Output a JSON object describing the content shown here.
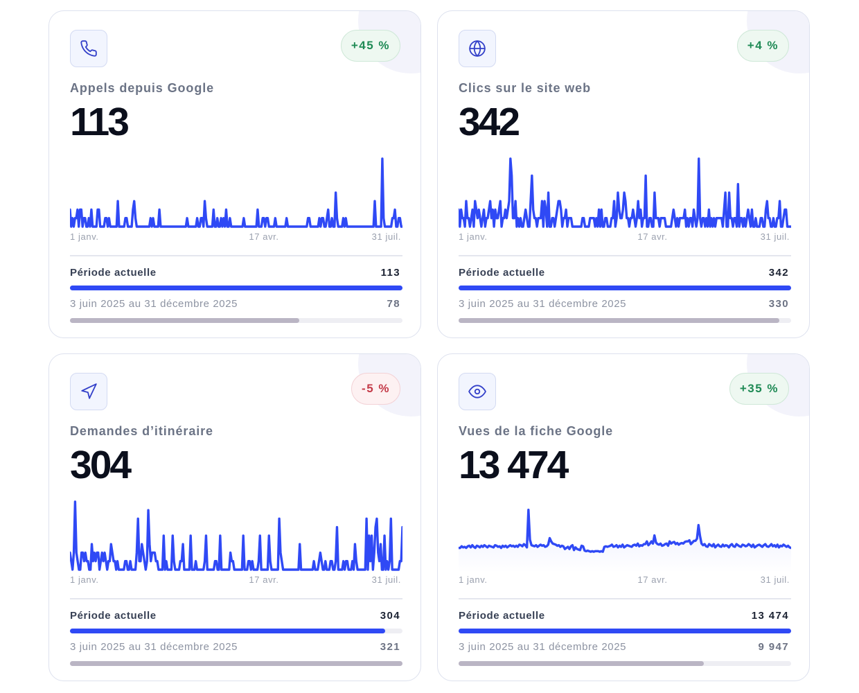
{
  "colors": {
    "accent": "#2f49f5",
    "positive": "#1f8a55",
    "negative": "#c43a48",
    "previous_bar": "#bab5c4"
  },
  "cards": [
    {
      "icon": "phone-icon",
      "title": "Appels depuis Google",
      "value": "113",
      "badge": "+45 %",
      "trend": "up",
      "current_label": "Période actuelle",
      "current_value": "113",
      "previous_label": "3 juin 2025 au 31 décembre 2025",
      "previous_value": "78",
      "bar_fraction": {
        "current": 1.0,
        "previous": 0.69
      }
    },
    {
      "icon": "globe-icon",
      "title": "Clics sur le site web",
      "value": "342",
      "badge": "+4 %",
      "trend": "up",
      "current_label": "Période actuelle",
      "current_value": "342",
      "previous_label": "3 juin 2025 au 31 décembre 2025",
      "previous_value": "330",
      "bar_fraction": {
        "current": 1.0,
        "previous": 0.965
      }
    },
    {
      "icon": "navigation-icon",
      "title": "Demandes d’itinéraire",
      "value": "304",
      "badge": "-5 %",
      "trend": "down",
      "current_label": "Période actuelle",
      "current_value": "304",
      "previous_label": "3 juin 2025 au 31 décembre 2025",
      "previous_value": "321",
      "bar_fraction": {
        "current": 0.947,
        "previous": 1.0
      }
    },
    {
      "icon": "eye-icon",
      "title": "Vues de la fiche Google",
      "value": "13 474",
      "badge": "+35 %",
      "trend": "up",
      "current_label": "Période actuelle",
      "current_value": "13 474",
      "previous_label": "3 juin 2025 au 31 décembre 2025",
      "previous_value": "9 947",
      "bar_fraction": {
        "current": 1.0,
        "previous": 0.738
      }
    }
  ],
  "chart_data": [
    {
      "type": "line",
      "x_ticks": [
        "1 janv.",
        "17 avr.",
        "31 juil."
      ],
      "ylim": [
        0,
        8
      ],
      "values": [
        2,
        0,
        1,
        0,
        1,
        1,
        2,
        0,
        2,
        2,
        0,
        1,
        1,
        0,
        0,
        1,
        0,
        2,
        0,
        0,
        0,
        0,
        2,
        2,
        0,
        0,
        0,
        0,
        1,
        1,
        0,
        1,
        0,
        0,
        0,
        0,
        0,
        0,
        3,
        0,
        0,
        0,
        0,
        0,
        1,
        1,
        0,
        0,
        0,
        0,
        2,
        3,
        1,
        0,
        0,
        0,
        0,
        0,
        0,
        0,
        0,
        0,
        0,
        0,
        1,
        0,
        1,
        0,
        0,
        0,
        0,
        2,
        0,
        0,
        0,
        0,
        0,
        0,
        0,
        0,
        0,
        0,
        0,
        0,
        0,
        0,
        0,
        0,
        0,
        0,
        0,
        0,
        0,
        1,
        0,
        0,
        0,
        0,
        0,
        0,
        0,
        1,
        0,
        0,
        1,
        1,
        0,
        3,
        1,
        0,
        0,
        0,
        0,
        0,
        2,
        0,
        0,
        1,
        0,
        0,
        1,
        0,
        1,
        0,
        2,
        0,
        0,
        1,
        0,
        0,
        0,
        0,
        0,
        0,
        0,
        0,
        0,
        0,
        1,
        0,
        0,
        0,
        0,
        0,
        0,
        0,
        0,
        0,
        0,
        2,
        0,
        0,
        0,
        1,
        1,
        0,
        1,
        1,
        0,
        0,
        0,
        0,
        0,
        1,
        0,
        0,
        0,
        0,
        0,
        0,
        0,
        0,
        1,
        0,
        0,
        0,
        0,
        0,
        0,
        0,
        0,
        0,
        0,
        0,
        0,
        0,
        0,
        0,
        0,
        1,
        1,
        0,
        0,
        0,
        0,
        0,
        0,
        0,
        1,
        0,
        1,
        1,
        0,
        0,
        1,
        2,
        0,
        0,
        1,
        0,
        0,
        4,
        1,
        0,
        0,
        0,
        0,
        1,
        0,
        1,
        0,
        0,
        0,
        0,
        0,
        0,
        0,
        0,
        0,
        0,
        0,
        0,
        0,
        0,
        0,
        0,
        0,
        0,
        0,
        0,
        0,
        0,
        3,
        0,
        0,
        0,
        0,
        0,
        8,
        1,
        0,
        0,
        0,
        0,
        0,
        0,
        1,
        1,
        2,
        0,
        0,
        1,
        1,
        0,
        0
      ]
    },
    {
      "type": "line",
      "x_ticks": [
        "1 janv.",
        "17 avr.",
        "31 juil."
      ],
      "ylim": [
        0,
        8
      ],
      "values": [
        2,
        0,
        2,
        1,
        1,
        0,
        3,
        1,
        1,
        0,
        1,
        2,
        0,
        3,
        2,
        1,
        2,
        1,
        0,
        1,
        2,
        0,
        1,
        1,
        2,
        3,
        1,
        2,
        0,
        2,
        1,
        1,
        2,
        3,
        0,
        1,
        1,
        2,
        1,
        2,
        3,
        8,
        6,
        1,
        1,
        3,
        0,
        1,
        0,
        1,
        0,
        0,
        1,
        2,
        1,
        0,
        0,
        3,
        6,
        2,
        1,
        1,
        0,
        1,
        1,
        1,
        3,
        0,
        3,
        2,
        0,
        4,
        0,
        0,
        1,
        1,
        0,
        1,
        2,
        3,
        3,
        2,
        0,
        1,
        1,
        2,
        0,
        1,
        1,
        1,
        0,
        0,
        0,
        0,
        0,
        0,
        0,
        0,
        1,
        1,
        0,
        0,
        0,
        0,
        1,
        1,
        1,
        1,
        0,
        1,
        0,
        2,
        0,
        2,
        0,
        0,
        1,
        1,
        0,
        0,
        0,
        1,
        1,
        3,
        0,
        1,
        4,
        2,
        1,
        1,
        2,
        4,
        3,
        1,
        1,
        0,
        1,
        1,
        2,
        1,
        0,
        1,
        3,
        1,
        2,
        0,
        1,
        1,
        6,
        0,
        0,
        1,
        1,
        0,
        0,
        4,
        1,
        1,
        1,
        0,
        1,
        1,
        1,
        1,
        0,
        0,
        0,
        0,
        0,
        1,
        2,
        1,
        0,
        1,
        0,
        1,
        1,
        1,
        1,
        2,
        0,
        1,
        0,
        1,
        1,
        0,
        2,
        1,
        0,
        1,
        8,
        1,
        0,
        1,
        1,
        0,
        1,
        0,
        2,
        0,
        1,
        0,
        1,
        0,
        1,
        1,
        1,
        1,
        1,
        0,
        2,
        4,
        0,
        0,
        4,
        1,
        1,
        0,
        1,
        1,
        0,
        5,
        0,
        1,
        1,
        0,
        1,
        0,
        1,
        2,
        1,
        0,
        2,
        0,
        0,
        1,
        0,
        0,
        0,
        1,
        1,
        0,
        0,
        2,
        3,
        1,
        1,
        0,
        0,
        1,
        0,
        0,
        1,
        1,
        3,
        0,
        0,
        1,
        2,
        2,
        0,
        0,
        0,
        0
      ]
    },
    {
      "type": "line",
      "x_ticks": [
        "1 janv.",
        "17 avr.",
        "31 juil."
      ],
      "ylim": [
        0,
        8
      ],
      "values": [
        2,
        1,
        0,
        2,
        8,
        2,
        1,
        0,
        0,
        2,
        2,
        1,
        2,
        1,
        1,
        0,
        0,
        3,
        1,
        2,
        1,
        2,
        2,
        0,
        1,
        2,
        1,
        2,
        1,
        0,
        1,
        1,
        3,
        2,
        1,
        1,
        0,
        1,
        0,
        0,
        0,
        0,
        0,
        1,
        1,
        0,
        0,
        1,
        0,
        0,
        0,
        0,
        2,
        6,
        1,
        1,
        3,
        2,
        1,
        0,
        1,
        7,
        3,
        1,
        2,
        2,
        2,
        1,
        1,
        0,
        0,
        0,
        0,
        4,
        0,
        1,
        0,
        0,
        0,
        0,
        4,
        1,
        0,
        0,
        0,
        0,
        1,
        1,
        3,
        0,
        0,
        0,
        0,
        0,
        4,
        0,
        0,
        0,
        1,
        0,
        0,
        0,
        0,
        0,
        0,
        1,
        4,
        0,
        0,
        0,
        0,
        0,
        0,
        1,
        1,
        0,
        0,
        4,
        0,
        0,
        0,
        0,
        0,
        0,
        0,
        2,
        1,
        1,
        0,
        0,
        0,
        0,
        0,
        0,
        0,
        4,
        0,
        0,
        0,
        1,
        1,
        0,
        1,
        0,
        0,
        0,
        0,
        1,
        4,
        0,
        0,
        0,
        0,
        0,
        0,
        4,
        1,
        0,
        0,
        0,
        0,
        0,
        0,
        6,
        2,
        1,
        0,
        0,
        0,
        0,
        0,
        0,
        0,
        0,
        0,
        0,
        0,
        0,
        0,
        3,
        0,
        0,
        0,
        0,
        0,
        0,
        0,
        0,
        0,
        0,
        1,
        0,
        0,
        0,
        1,
        2,
        1,
        0,
        0,
        1,
        0,
        0,
        0,
        1,
        1,
        0,
        0,
        1,
        5,
        0,
        0,
        0,
        0,
        1,
        0,
        1,
        1,
        0,
        0,
        0,
        1,
        0,
        3,
        1,
        0,
        0,
        0,
        0,
        0,
        0,
        0,
        6,
        0,
        4,
        1,
        4,
        0,
        2,
        5,
        6,
        2,
        1,
        3,
        0,
        0,
        4,
        0,
        1,
        0,
        1,
        6,
        0,
        0,
        0,
        0,
        0,
        0,
        1,
        1,
        5
      ]
    },
    {
      "type": "area",
      "x_ticks": [
        "1 janv.",
        "17 avr.",
        "31 juil."
      ],
      "ylim": [
        0,
        125
      ],
      "values": [
        40,
        40,
        43,
        41,
        42,
        40,
        43,
        44,
        41,
        45,
        42,
        40,
        44,
        43,
        41,
        44,
        42,
        45,
        43,
        41,
        44,
        43,
        42,
        41,
        45,
        44,
        42,
        43,
        40,
        44,
        42,
        44,
        41,
        43,
        45,
        43,
        44,
        42,
        44,
        42,
        46,
        45,
        43,
        47,
        45,
        41,
        110,
        55,
        45,
        44,
        43,
        45,
        42,
        44,
        46,
        44,
        45,
        42,
        43,
        46,
        58,
        52,
        48,
        47,
        46,
        44,
        45,
        42,
        44,
        43,
        38,
        40,
        42,
        38,
        43,
        45,
        36,
        41,
        38,
        37,
        36,
        44,
        43,
        35,
        34,
        35,
        34,
        33,
        34,
        33,
        34,
        34,
        34,
        33,
        34,
        33,
        42,
        43,
        42,
        43,
        44,
        46,
        42,
        43,
        45,
        41,
        44,
        42,
        46,
        41,
        43,
        45,
        44,
        43,
        42,
        45,
        46,
        44,
        48,
        43,
        45,
        44,
        47,
        47,
        52,
        45,
        48,
        52,
        48,
        63,
        50,
        47,
        46,
        48,
        44,
        45,
        47,
        48,
        44,
        52,
        48,
        50,
        51,
        47,
        49,
        46,
        48,
        49,
        48,
        51,
        52,
        52,
        54,
        47,
        50,
        53,
        53,
        57,
        82,
        62,
        48,
        45,
        47,
        43,
        42,
        47,
        45,
        43,
        47,
        41,
        44,
        46,
        43,
        42,
        46,
        43,
        45,
        44,
        41,
        45,
        47,
        43,
        42,
        47,
        45,
        43,
        42,
        46,
        45,
        43,
        44,
        47,
        45,
        42,
        46,
        41,
        43,
        45,
        46,
        44,
        42,
        45,
        47,
        43,
        42,
        44,
        47,
        43,
        45,
        42,
        46,
        41,
        44,
        43,
        46,
        44,
        42,
        44,
        41,
        40
      ]
    }
  ]
}
